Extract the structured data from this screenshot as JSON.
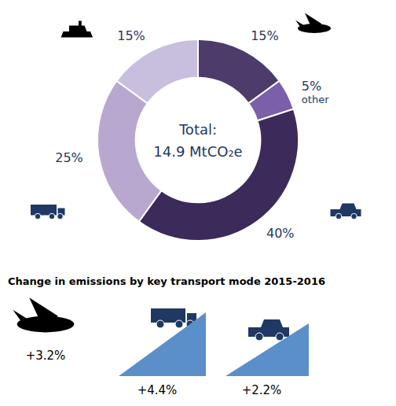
{
  "chart_data": [
    {
      "type": "donut",
      "categories": [
        null,
        "other",
        null,
        null,
        null
      ],
      "values": [
        15,
        5,
        40,
        25,
        15
      ],
      "value_labels": [
        "15%",
        "5%",
        "40%",
        "25%",
        "15%"
      ],
      "data_labels": true,
      "colors": [
        "#4d3b6b",
        "#7b5faa",
        "#3b2a5a",
        "#b8a8d0",
        "#c8bedd"
      ],
      "annotations": [
        "Total:",
        "14.9 MtCO₂e"
      ]
    },
    {
      "type": "infographic",
      "title": "Change in emissions by key transport mode 2015-2016",
      "annotations": [
        "+3.2%",
        "+4.4%",
        "+2.2%"
      ],
      "color": "#5b8fc9"
    }
  ]
}
